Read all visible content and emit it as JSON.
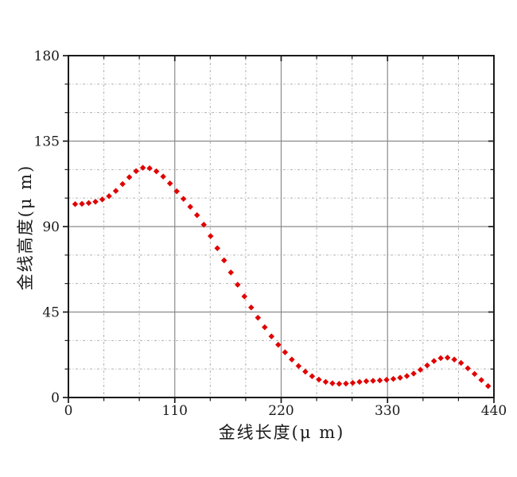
{
  "page": {
    "background": "#ffffff"
  },
  "chart_data": {
    "type": "scatter",
    "title": "",
    "xlabel": "金线长度(μ m)",
    "ylabel": "金线高度(μ m)",
    "xlim": [
      0,
      440
    ],
    "ylim": [
      0,
      180
    ],
    "x_ticks": [
      0,
      110,
      220,
      330,
      440
    ],
    "x_tick_labels": [
      "0",
      "110",
      "220",
      "330",
      "440"
    ],
    "y_ticks": [
      0,
      45,
      90,
      135,
      180
    ],
    "y_tick_labels": [
      "0",
      "45",
      "90",
      "135",
      "180"
    ],
    "x_minor_ticks": [
      36.67,
      73.33,
      146.67,
      183.33,
      256.67,
      293.33,
      366.67,
      403.33
    ],
    "y_minor_ticks": [
      15,
      30,
      60,
      75,
      105,
      120,
      150,
      165
    ],
    "grid": {
      "show_major": true,
      "show_minor": true,
      "major_color": "#8a8a8a",
      "minor_color": "#b0b0b0"
    },
    "axis_color": "#1a1a1a",
    "tick_label_color": "#1a1a1a",
    "marker": {
      "shape": "diamond",
      "color": "#e00000",
      "size": 7.5
    },
    "legend": null,
    "series": [
      {
        "points": [
          [
            7,
            101.8
          ],
          [
            14,
            102
          ],
          [
            21,
            102.4
          ],
          [
            28,
            103.1
          ],
          [
            35,
            104.3
          ],
          [
            42,
            106
          ],
          [
            49,
            108.8
          ],
          [
            56,
            112.4
          ],
          [
            63,
            116
          ],
          [
            70,
            119.2
          ],
          [
            77,
            121
          ],
          [
            84,
            120.7
          ],
          [
            91,
            119.1
          ],
          [
            98,
            116.3
          ],
          [
            105,
            112.7
          ],
          [
            112,
            108.6
          ],
          [
            119,
            104.6
          ],
          [
            126,
            100.4
          ],
          [
            133,
            96
          ],
          [
            140,
            91
          ],
          [
            147,
            85
          ],
          [
            154,
            78.6
          ],
          [
            161,
            72.2
          ],
          [
            168,
            65.8
          ],
          [
            175,
            59.4
          ],
          [
            182,
            53.2
          ],
          [
            189,
            47.4
          ],
          [
            196,
            42
          ],
          [
            203,
            37
          ],
          [
            210,
            32.2
          ],
          [
            217,
            27.8
          ],
          [
            224,
            23.8
          ],
          [
            231,
            20
          ],
          [
            238,
            16.6
          ],
          [
            245,
            13.6
          ],
          [
            252,
            11.2
          ],
          [
            259,
            9.4
          ],
          [
            266,
            8.2
          ],
          [
            273,
            7.5
          ],
          [
            280,
            7.2
          ],
          [
            287,
            7.3
          ],
          [
            294,
            7.7
          ],
          [
            301,
            8.2
          ],
          [
            308,
            8.6
          ],
          [
            315,
            8.8
          ],
          [
            322,
            9
          ],
          [
            329,
            9.3
          ],
          [
            336,
            9.8
          ],
          [
            343,
            10.4
          ],
          [
            350,
            11.3
          ],
          [
            357,
            12.6
          ],
          [
            364,
            14.6
          ],
          [
            371,
            16.9
          ],
          [
            378,
            19.2
          ],
          [
            385,
            20.7
          ],
          [
            392,
            21
          ],
          [
            399,
            20
          ],
          [
            406,
            18.2
          ],
          [
            413,
            15.4
          ],
          [
            420,
            12.4
          ],
          [
            427,
            9.2
          ],
          [
            434,
            6
          ]
        ]
      }
    ]
  }
}
